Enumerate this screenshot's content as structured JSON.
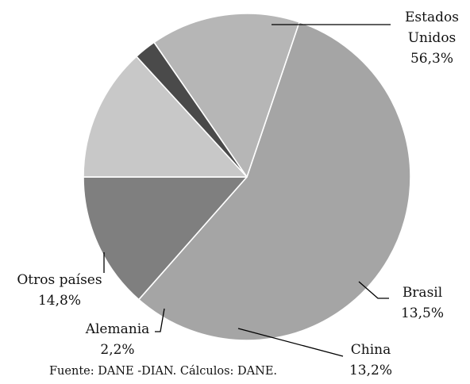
{
  "chart_data": {
    "type": "pie",
    "title": "",
    "slices": [
      {
        "label": "Estados Unidos",
        "value": 56.3,
        "value_label": "56,3%",
        "color": "#a5a5a5"
      },
      {
        "label": "Brasil",
        "value": 13.5,
        "value_label": "13,5%",
        "color": "#7f7f7f"
      },
      {
        "label": "China",
        "value": 13.2,
        "value_label": "13,2%",
        "color": "#c8c8c8"
      },
      {
        "label": "Alemania",
        "value": 2.2,
        "value_label": "2,2%",
        "color": "#4a4a4a"
      },
      {
        "label": "Otros países",
        "value": 14.8,
        "value_label": "14,8%",
        "color": "#b6b6b6"
      }
    ],
    "source": "Fuente: DANE -DIAN.  Cálculos: DANE."
  }
}
